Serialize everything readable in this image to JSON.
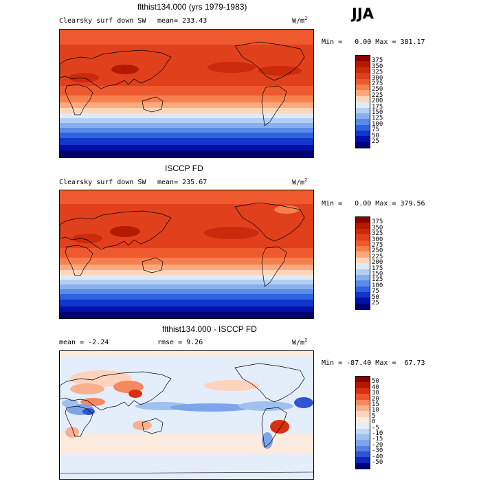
{
  "header": {
    "season": "JJA"
  },
  "panels": [
    {
      "title": "flthist134.000 (yrs 1979-1983)",
      "field": "Clearsky surf down SW",
      "stat1": "mean= 233.43",
      "stat2": "",
      "units": "W/m",
      "units_sup": "2",
      "min_label": "Min =",
      "min_value": "0.00",
      "max_label": "Max =",
      "max_value": "381.17",
      "colorbar_levels": [
        "375",
        "350",
        "325",
        "300",
        "275",
        "250",
        "225",
        "200",
        "175",
        "150",
        "125",
        "100",
        "75",
        "50",
        "25"
      ],
      "colors": [
        "#8b0000",
        "#b41a00",
        "#cc2a0c",
        "#e0401c",
        "#ee5a2e",
        "#f6804e",
        "#fbaa80",
        "#fdd6bc",
        "#ddeaf8",
        "#b4cef3",
        "#88afed",
        "#5a8be8",
        "#2f62df",
        "#1036cc",
        "#0010a8",
        "#000070"
      ]
    },
    {
      "title": "ISCCP FD",
      "field": "Clearsky surf down SW",
      "stat1": "mean= 235.67",
      "stat2": "",
      "units": "W/m",
      "units_sup": "2",
      "min_label": "Min =",
      "min_value": "0.00",
      "max_label": "Max =",
      "max_value": "379.56",
      "colorbar_levels": [
        "375",
        "350",
        "325",
        "300",
        "275",
        "250",
        "225",
        "200",
        "175",
        "150",
        "125",
        "100",
        "75",
        "50",
        "25"
      ],
      "colors": [
        "#8b0000",
        "#b41a00",
        "#cc2a0c",
        "#e0401c",
        "#ee5a2e",
        "#f6804e",
        "#fbaa80",
        "#fdd6bc",
        "#ddeaf8",
        "#b4cef3",
        "#88afed",
        "#5a8be8",
        "#2f62df",
        "#1036cc",
        "#0010a8",
        "#000070"
      ]
    },
    {
      "title": "flthist134.000 - ISCCP FD",
      "field": "",
      "stat1": "mean =  -2.24",
      "stat2": "rmse =   9.26",
      "units": "W/m",
      "units_sup": "2",
      "min_label": "Min =",
      "min_value": "-87.40",
      "max_label": "Max =",
      "max_value": "67.73",
      "colorbar_levels": [
        "50",
        "40",
        "30",
        "20",
        "15",
        "10",
        "5",
        "0",
        "-5",
        "-10",
        "-15",
        "-20",
        "-30",
        "-40",
        "-50"
      ],
      "colors": [
        "#8b0000",
        "#b51800",
        "#d83010",
        "#ee5530",
        "#f58860",
        "#f9b08e",
        "#fdd3bd",
        "#fdebdf",
        "#e4eefa",
        "#c4d8f4",
        "#a0c0ef",
        "#7da5e9",
        "#5482e1",
        "#2f55d4",
        "#1026b8",
        "#000080"
      ]
    }
  ]
}
